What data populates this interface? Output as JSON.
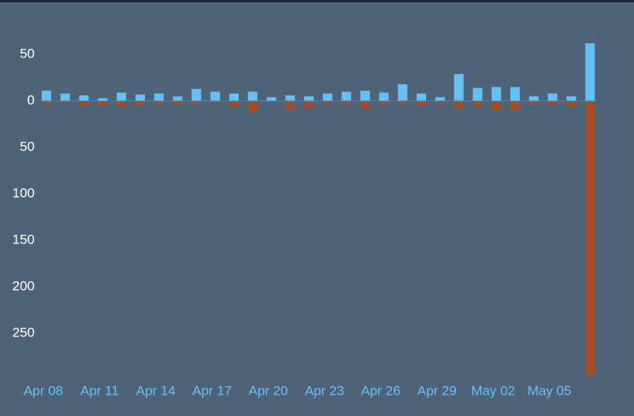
{
  "chart_data": {
    "type": "bar",
    "categories": [
      "Apr 08",
      null,
      null,
      "Apr 11",
      null,
      null,
      "Apr 14",
      null,
      null,
      "Apr 17",
      null,
      null,
      "Apr 20",
      null,
      null,
      "Apr 23",
      null,
      null,
      "Apr 26",
      null,
      null,
      "Apr 29",
      null,
      null,
      "May 02",
      null,
      null,
      "May 05",
      null,
      null
    ],
    "series": [
      {
        "color": "#66c0f4",
        "values": [
          11,
          8,
          6,
          3,
          9,
          7,
          8,
          5,
          13,
          10,
          8,
          10,
          4,
          6,
          5,
          8,
          10,
          11,
          9,
          18,
          8,
          4,
          29,
          14,
          15,
          15,
          5,
          8,
          5,
          62
        ]
      },
      {
        "color": "#a34c25",
        "values": [
          -3,
          -2,
          -5,
          -5,
          -6,
          -5,
          -3,
          -4,
          -3,
          -2,
          -6,
          -12,
          -1,
          -9,
          -7,
          -3,
          -3,
          -8,
          -3,
          -3,
          -5,
          -3,
          -8,
          -6,
          -10,
          -10,
          -3,
          -4,
          -6,
          -295
        ]
      }
    ],
    "ylim": [
      -300,
      90
    ],
    "yticks": [
      50,
      0,
      {
        "value": -50,
        "label": "50"
      },
      {
        "value": -100,
        "label": "100"
      },
      {
        "value": -150,
        "label": "150"
      },
      {
        "value": -200,
        "label": "200"
      },
      {
        "value": -250,
        "label": "250"
      }
    ]
  }
}
